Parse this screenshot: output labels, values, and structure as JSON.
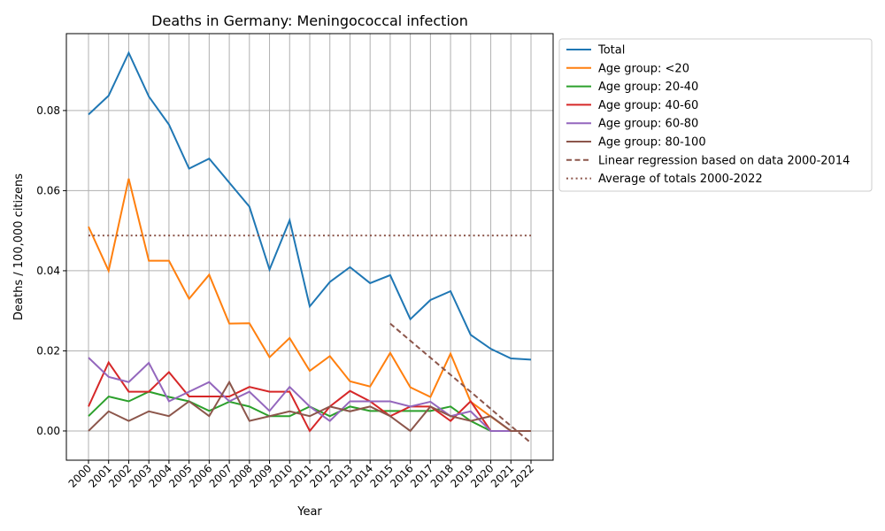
{
  "chart_data": {
    "type": "line",
    "title": "Deaths in Germany: Meningococcal infection",
    "xlabel": "Year",
    "ylabel": "Deaths / 100,000 citizens",
    "xlim": [
      1998.9,
      2023.1
    ],
    "ylim": [
      -0.0073,
      0.0992
    ],
    "grid": true,
    "legend_position": "outside-right",
    "x": [
      2000,
      2001,
      2002,
      2003,
      2004,
      2005,
      2006,
      2007,
      2008,
      2009,
      2010,
      2011,
      2012,
      2013,
      2014,
      2015,
      2016,
      2017,
      2018,
      2019,
      2020,
      2021,
      2022
    ],
    "x_tick_labels": [
      "2000",
      "2001",
      "2002",
      "2003",
      "2004",
      "2005",
      "2006",
      "2007",
      "2008",
      "2009",
      "2010",
      "2011",
      "2012",
      "2013",
      "2014",
      "2015",
      "2016",
      "2017",
      "2018",
      "2019",
      "2020",
      "2021",
      "2022"
    ],
    "y_ticks": [
      0.0,
      0.02,
      0.04,
      0.06,
      0.08
    ],
    "y_tick_labels": [
      "0.00",
      "0.02",
      "0.04",
      "0.06",
      "0.08"
    ],
    "series": [
      {
        "name": "Total",
        "color": "#1f77b4",
        "style": "solid",
        "values": [
          0.079,
          0.0837,
          0.0944,
          0.0835,
          0.0765,
          0.0655,
          0.068,
          0.062,
          0.056,
          0.0403,
          0.0526,
          0.0311,
          0.0372,
          0.0409,
          0.0369,
          0.0389,
          0.0279,
          0.0327,
          0.0349,
          0.024,
          0.0205,
          0.0181,
          0.0178
        ]
      },
      {
        "name": "Age group: <20",
        "color": "#ff7f0e",
        "style": "solid",
        "values": [
          0.051,
          0.04,
          0.063,
          0.0425,
          0.0425,
          0.033,
          0.039,
          0.0268,
          0.0269,
          0.0184,
          0.0232,
          0.015,
          0.0187,
          0.0124,
          0.0111,
          0.0195,
          0.0109,
          0.0085,
          0.0193,
          0.0073,
          0.0036,
          0,
          0
        ]
      },
      {
        "name": "Age group: 20-40",
        "color": "#2ca02c",
        "style": "solid",
        "values": [
          0.0037,
          0.0086,
          0.0074,
          0.0098,
          0.0085,
          0.0074,
          0.005,
          0.0073,
          0.0061,
          0.0037,
          0.0037,
          0.0061,
          0.0037,
          0.0061,
          0.005,
          0.005,
          0.005,
          0.005,
          0.0061,
          0.0025,
          0,
          0,
          0
        ]
      },
      {
        "name": "Age group: 40-60",
        "color": "#d62728",
        "style": "solid",
        "values": [
          0.0061,
          0.0171,
          0.0098,
          0.0098,
          0.0147,
          0.0086,
          0.0086,
          0.0086,
          0.011,
          0.0098,
          0.0098,
          0,
          0.0061,
          0.01,
          0.0074,
          0.0037,
          0.0061,
          0.0061,
          0.0025,
          0.0074,
          0,
          0,
          0
        ]
      },
      {
        "name": "Age group: 60-80",
        "color": "#9467bd",
        "style": "solid",
        "values": [
          0.0183,
          0.0135,
          0.0122,
          0.017,
          0.0074,
          0.0098,
          0.0122,
          0.0074,
          0.0098,
          0.005,
          0.011,
          0.0061,
          0.0025,
          0.0074,
          0.0074,
          0.0074,
          0.0061,
          0.0073,
          0.0037,
          0.0049,
          0,
          0,
          0
        ]
      },
      {
        "name": "Age group: 80-100",
        "color": "#8c564b",
        "style": "solid",
        "values": [
          0,
          0.0049,
          0.0025,
          0.0049,
          0.0037,
          0.0074,
          0.0037,
          0.0122,
          0.0025,
          0.0037,
          0.0049,
          0.0037,
          0.0061,
          0.0049,
          0.0061,
          0.0037,
          0,
          0.0061,
          0.0037,
          0.0025,
          0.0037,
          0,
          0
        ]
      },
      {
        "name": "Linear regression based on data 2000-2014",
        "color": "#8c564b",
        "style": "dashed",
        "x": [
          2015,
          2022
        ],
        "values": [
          0.0268,
          -0.003
        ]
      },
      {
        "name": "Average of totals 2000-2022",
        "color": "#8c564b",
        "style": "dotted",
        "x": [
          2000,
          2022
        ],
        "values": [
          0.0488,
          0.0488
        ]
      }
    ]
  }
}
